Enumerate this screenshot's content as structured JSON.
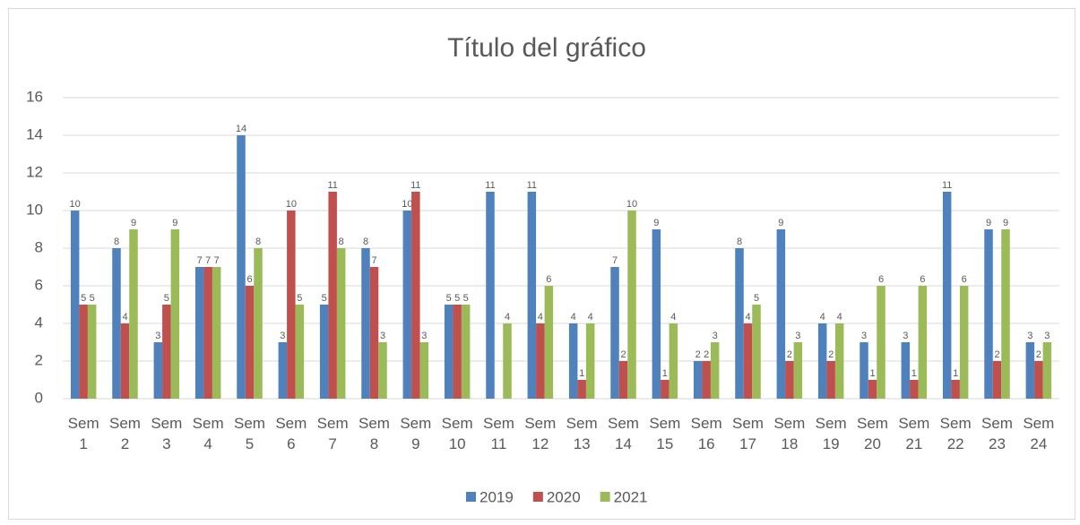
{
  "chart_data": {
    "type": "bar",
    "title": "Título del gráfico",
    "categories": [
      "Sem 1",
      "Sem 2",
      "Sem 3",
      "Sem 4",
      "Sem 5",
      "Sem 6",
      "Sem 7",
      "Sem 8",
      "Sem 9",
      "Sem 10",
      "Sem 11",
      "Sem 12",
      "Sem 13",
      "Sem 14",
      "Sem 15",
      "Sem 16",
      "Sem 17",
      "Sem 18",
      "Sem 19",
      "Sem 20",
      "Sem 21",
      "Sem 22",
      "Sem 23",
      "Sem 24"
    ],
    "series": [
      {
        "name": "2019",
        "color": "#4f81bd",
        "values": [
          10,
          8,
          3,
          7,
          14,
          3,
          5,
          8,
          10,
          5,
          11,
          11,
          4,
          7,
          9,
          2,
          8,
          9,
          4,
          3,
          3,
          11,
          9,
          3
        ]
      },
      {
        "name": "2020",
        "color": "#c0504d",
        "values": [
          5,
          4,
          5,
          7,
          6,
          10,
          11,
          7,
          11,
          5,
          null,
          4,
          1,
          2,
          1,
          2,
          4,
          2,
          2,
          1,
          1,
          1,
          2,
          2
        ]
      },
      {
        "name": "2021",
        "color": "#9bbb59",
        "values": [
          5,
          9,
          9,
          7,
          8,
          5,
          8,
          3,
          3,
          5,
          4,
          6,
          4,
          10,
          4,
          3,
          5,
          3,
          4,
          6,
          6,
          6,
          9,
          3
        ]
      }
    ],
    "ylim": [
      0,
      16
    ],
    "yticks": [
      0,
      2,
      4,
      6,
      8,
      10,
      12,
      14,
      16
    ],
    "grid": true,
    "legend": "bottom"
  }
}
